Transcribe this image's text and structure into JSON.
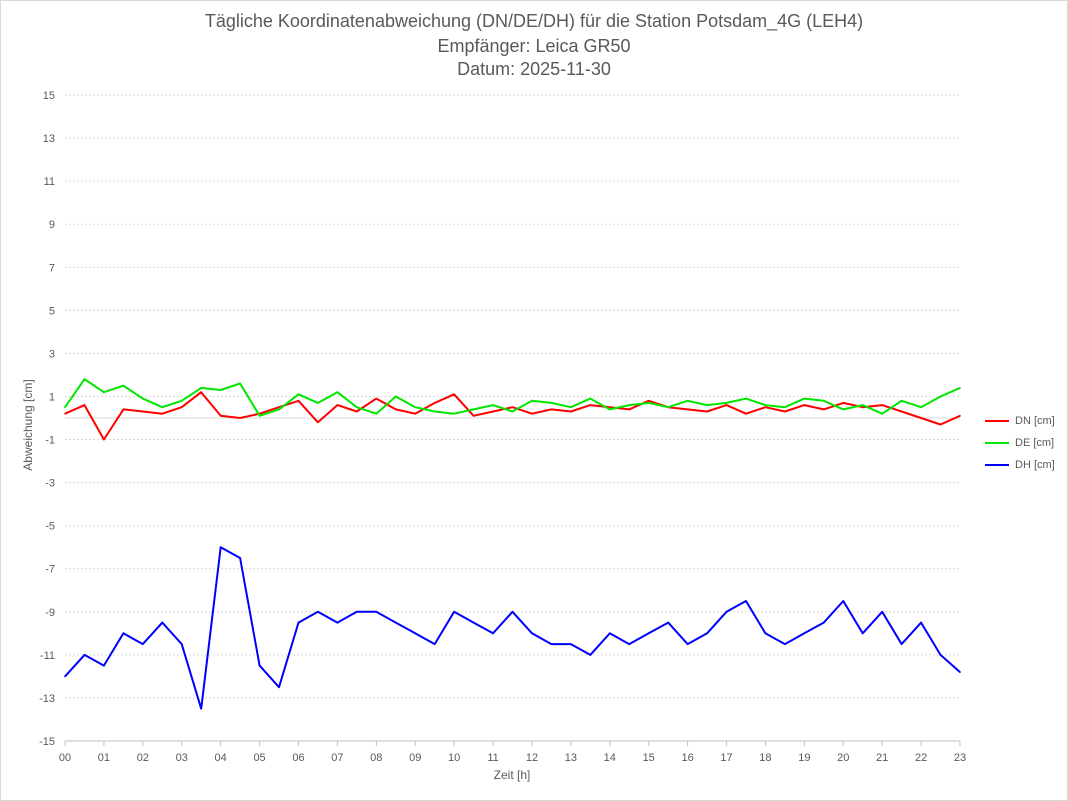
{
  "chart_data": {
    "type": "line",
    "title": "Tägliche Koordinatenabweichung (DN/DE/DH) für die Station Potsdam_4G (LEH4)",
    "subtitle1": "Empfänger: Leica GR50",
    "subtitle2": "Datum: 2025-11-30",
    "xlabel": "Zeit [h]",
    "ylabel": "Abweichung [cm]",
    "xlim": [
      0,
      23
    ],
    "ylim": [
      -15,
      15
    ],
    "x_ticks": [
      "00",
      "01",
      "02",
      "03",
      "04",
      "05",
      "06",
      "07",
      "08",
      "09",
      "10",
      "11",
      "12",
      "13",
      "14",
      "15",
      "16",
      "17",
      "18",
      "19",
      "20",
      "21",
      "22",
      "23"
    ],
    "y_ticks": [
      "15",
      "13",
      "11",
      "9",
      "7",
      "5",
      "3",
      "1",
      "-1",
      "-3",
      "-5",
      "-7",
      "-9",
      "-11",
      "-13",
      "-15"
    ],
    "y_tick_values": [
      15,
      13,
      11,
      9,
      7,
      5,
      3,
      1,
      -1,
      -3,
      -5,
      -7,
      -9,
      -11,
      -13,
      -15
    ],
    "grid": true,
    "legend_position": "right",
    "series": [
      {
        "name": "DN [cm]",
        "color": "#ff0000",
        "x": [
          0,
          0.5,
          1,
          1.5,
          2,
          2.5,
          3,
          3.5,
          4,
          4.5,
          5,
          5.5,
          6,
          6.5,
          7,
          7.5,
          8,
          8.5,
          9,
          9.5,
          10,
          10.5,
          11,
          11.5,
          12,
          12.5,
          13,
          13.5,
          14,
          14.5,
          15,
          15.5,
          16,
          16.5,
          17,
          17.5,
          18,
          18.5,
          19,
          19.5,
          20,
          20.5,
          21,
          21.5,
          22,
          22.5,
          23
        ],
        "values": [
          0.2,
          0.6,
          -1.0,
          0.4,
          0.3,
          0.2,
          0.5,
          1.2,
          0.1,
          0.0,
          0.2,
          0.5,
          0.8,
          -0.2,
          0.6,
          0.3,
          0.9,
          0.4,
          0.2,
          0.7,
          1.1,
          0.1,
          0.3,
          0.5,
          0.2,
          0.4,
          0.3,
          0.6,
          0.5,
          0.4,
          0.8,
          0.5,
          0.4,
          0.3,
          0.6,
          0.2,
          0.5,
          0.3,
          0.6,
          0.4,
          0.7,
          0.5,
          0.6,
          0.3,
          0.0,
          -0.3,
          0.1
        ]
      },
      {
        "name": "DE [cm]",
        "color": "#00e600",
        "x": [
          0,
          0.5,
          1,
          1.5,
          2,
          2.5,
          3,
          3.5,
          4,
          4.5,
          5,
          5.5,
          6,
          6.5,
          7,
          7.5,
          8,
          8.5,
          9,
          9.5,
          10,
          10.5,
          11,
          11.5,
          12,
          12.5,
          13,
          13.5,
          14,
          14.5,
          15,
          15.5,
          16,
          16.5,
          17,
          17.5,
          18,
          18.5,
          19,
          19.5,
          20,
          20.5,
          21,
          21.5,
          22,
          22.5,
          23
        ],
        "values": [
          0.5,
          1.8,
          1.2,
          1.5,
          0.9,
          0.5,
          0.8,
          1.4,
          1.3,
          1.6,
          0.1,
          0.4,
          1.1,
          0.7,
          1.2,
          0.5,
          0.2,
          1.0,
          0.5,
          0.3,
          0.2,
          0.4,
          0.6,
          0.3,
          0.8,
          0.7,
          0.5,
          0.9,
          0.4,
          0.6,
          0.7,
          0.5,
          0.8,
          0.6,
          0.7,
          0.9,
          0.6,
          0.5,
          0.9,
          0.8,
          0.4,
          0.6,
          0.2,
          0.8,
          0.5,
          1.0,
          1.4
        ]
      },
      {
        "name": "DH [cm]",
        "color": "#0000ff",
        "x": [
          0,
          0.5,
          1,
          1.5,
          2,
          2.5,
          3,
          3.5,
          4,
          4.5,
          5,
          5.5,
          6,
          6.5,
          7,
          7.5,
          8,
          8.5,
          9,
          9.5,
          10,
          10.5,
          11,
          11.5,
          12,
          12.5,
          13,
          13.5,
          14,
          14.5,
          15,
          15.5,
          16,
          16.5,
          17,
          17.5,
          18,
          18.5,
          19,
          19.5,
          20,
          20.5,
          21,
          21.5,
          22,
          22.5,
          23
        ],
        "values": [
          -12.0,
          -11.0,
          -11.5,
          -10.0,
          -10.5,
          -9.5,
          -10.5,
          -13.5,
          -6.0,
          -6.5,
          -11.5,
          -12.5,
          -9.5,
          -9.0,
          -9.5,
          -9.0,
          -9.0,
          -9.5,
          -10.0,
          -10.5,
          -9.0,
          -9.5,
          -10.0,
          -9.0,
          -10.0,
          -10.5,
          -10.5,
          -11.0,
          -10.0,
          -10.5,
          -10.0,
          -9.5,
          -10.5,
          -10.0,
          -9.0,
          -8.5,
          -10.0,
          -10.5,
          -10.0,
          -9.5,
          -8.5,
          -10.0,
          -9.0,
          -10.5,
          -9.5,
          -11.0,
          -11.8
        ]
      }
    ]
  }
}
